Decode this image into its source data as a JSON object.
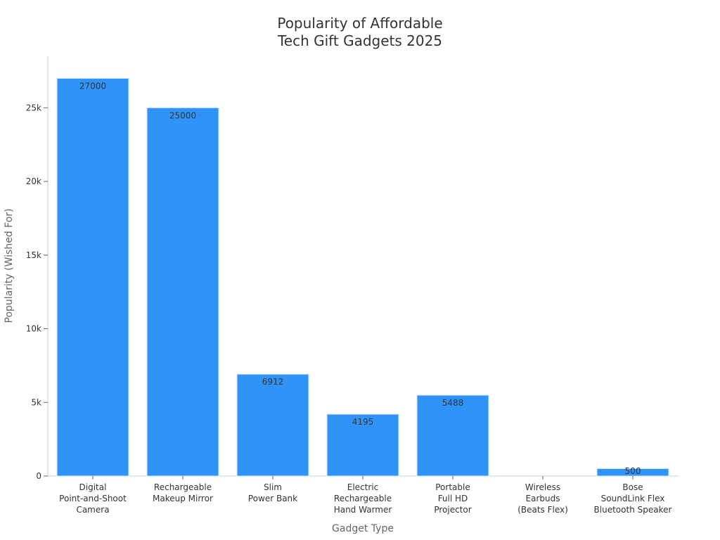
{
  "chart_data": {
    "type": "bar",
    "title_lines": [
      "Popularity of Affordable",
      "Tech Gift Gadgets 2025"
    ],
    "xlabel": "Gadget Type",
    "ylabel": "Popularity (Wished For)",
    "ylim": [
      0,
      28500
    ],
    "yticks": [
      0,
      5000,
      10000,
      15000,
      20000,
      25000
    ],
    "ytick_labels": [
      "0",
      "5k",
      "10k",
      "15k",
      "20k",
      "25k"
    ],
    "grid": false,
    "legend": "none",
    "categories": [
      [
        "Digital",
        "Point-and-Shoot",
        "Camera"
      ],
      [
        "Rechargeable",
        "Makeup Mirror"
      ],
      [
        "Slim",
        "Power Bank"
      ],
      [
        "Electric",
        "Rechargeable",
        "Hand Warmer"
      ],
      [
        "Portable",
        "Full HD",
        "Projector"
      ],
      [
        "Wireless",
        "Earbuds",
        "(Beats Flex)"
      ],
      [
        "Bose",
        "SoundLink Flex",
        "Bluetooth Speaker"
      ]
    ],
    "values": [
      27000,
      25000,
      6912,
      4195,
      5488,
      0,
      500
    ],
    "data_labels": [
      "27000",
      "25000",
      "6912",
      "4195",
      "5488",
      "",
      "500"
    ],
    "colors": {
      "bar": "#3093f7",
      "bar_edge": "#cfe4fb",
      "axis": "#cccccc",
      "tick": "#666666"
    }
  }
}
